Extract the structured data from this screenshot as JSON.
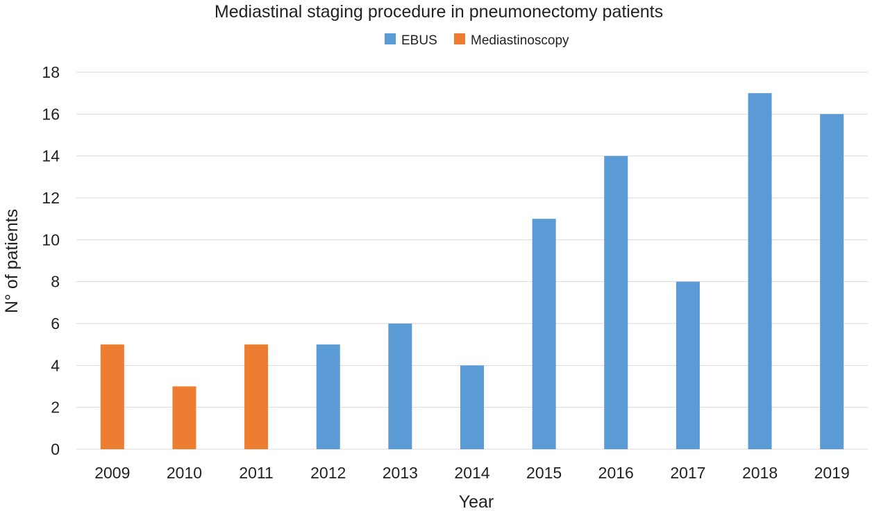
{
  "chart_data": {
    "type": "bar",
    "title": "Mediastinal staging procedure in pneumonectomy patients",
    "xlabel": "Year",
    "ylabel": "N° of patients",
    "categories": [
      "2009",
      "2010",
      "2011",
      "2012",
      "2013",
      "2014",
      "2015",
      "2016",
      "2017",
      "2018",
      "2019"
    ],
    "series": [
      {
        "name": "EBUS",
        "color": "#5b9bd5",
        "values": [
          0,
          0,
          0,
          5,
          6,
          4,
          11,
          14,
          8,
          17,
          16
        ]
      },
      {
        "name": "Mediastinoscopy",
        "color": "#ed7d31",
        "values": [
          5,
          3,
          5,
          0,
          0,
          0,
          0,
          0,
          0,
          0,
          0
        ]
      }
    ],
    "ylim": [
      0,
      18
    ],
    "yticks": [
      "0",
      "2",
      "4",
      "6",
      "8",
      "10",
      "12",
      "14",
      "16",
      "18"
    ],
    "grid": true,
    "legend_position": "top"
  }
}
